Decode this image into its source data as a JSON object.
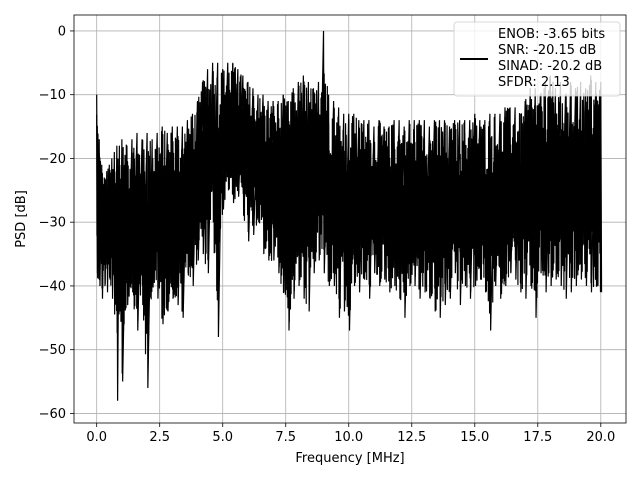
{
  "chart_data": {
    "type": "line",
    "xlabel": "Frequency [MHz]",
    "ylabel": "PSD [dB]",
    "xlim": [
      -0.9,
      21.0
    ],
    "ylim": [
      -61.5,
      2.5
    ],
    "xticks": [
      0.0,
      2.5,
      5.0,
      7.5,
      10.0,
      12.5,
      15.0,
      17.5,
      20.0
    ],
    "xtick_labels": [
      "0.0",
      "2.5",
      "5.0",
      "7.5",
      "10.0",
      "12.5",
      "15.0",
      "17.5",
      "20.0"
    ],
    "yticks": [
      0,
      -10,
      -20,
      -30,
      -40,
      -50,
      -60
    ],
    "ytick_labels": [
      "0",
      "−10",
      "−20",
      "−30",
      "−40",
      "−50",
      "−60"
    ],
    "grid": true,
    "legend_position": "top-right",
    "series_color": "#000000",
    "legend": {
      "entries": [
        "ENOB: -3.65 bits",
        "SNR: -20.15 dB",
        "SINAD: -20.2 dB",
        "SFDR: 2.13"
      ]
    },
    "series": [
      {
        "x": [
          0.0,
          0.1,
          0.2,
          0.3,
          0.4,
          0.5,
          0.6,
          0.7,
          0.8,
          0.9,
          1.0,
          1.2,
          1.4,
          1.6,
          1.8,
          2.0,
          2.2,
          2.4,
          2.6,
          2.8,
          3.0,
          3.2,
          3.4,
          3.6,
          3.8,
          4.0,
          4.2,
          4.4,
          4.6,
          4.8,
          5.0,
          5.2,
          5.4,
          5.6,
          5.8,
          6.0,
          6.2,
          6.4,
          6.6,
          6.8,
          7.0,
          7.2,
          7.4,
          7.6,
          7.8,
          8.0,
          8.2,
          8.4,
          8.6,
          8.8,
          9.0,
          9.2,
          9.4,
          9.6,
          9.8,
          10.0,
          10.2,
          10.4,
          10.6,
          10.8,
          11.0,
          11.2,
          11.4,
          11.6,
          11.8,
          12.0,
          12.2,
          12.4,
          12.6,
          12.8,
          13.0,
          13.2,
          13.4,
          13.6,
          13.8,
          14.0,
          14.2,
          14.4,
          14.6,
          14.8,
          15.0,
          15.2,
          15.4,
          15.6,
          15.8,
          16.0,
          16.2,
          16.4,
          16.6,
          16.8,
          17.0,
          17.2,
          17.4,
          17.6,
          17.8,
          18.0,
          18.2,
          18.4,
          18.6,
          18.8,
          19.0,
          19.2,
          19.4,
          19.6,
          19.8,
          20.0
        ],
        "envelope_max": [
          -10,
          -17,
          -21,
          -23,
          -22,
          -21,
          -20,
          -19,
          -18,
          -18,
          -17,
          -18,
          -17,
          -16,
          -17,
          -16,
          -17,
          -16,
          -15,
          -16,
          -15,
          -15,
          -15,
          -14,
          -13,
          -11,
          -8,
          -6,
          -5,
          -5,
          -6,
          -5,
          -5,
          -6,
          -7,
          -8,
          -9,
          -10,
          -10,
          -11,
          -11,
          -11,
          -10,
          -11,
          -9,
          -8,
          -7,
          -8,
          -9,
          -8,
          0,
          -10,
          -11,
          -12,
          -13,
          -13,
          -13,
          -14,
          -14,
          -14,
          -15,
          -14,
          -15,
          -15,
          -14,
          -14,
          -15,
          -14,
          -14,
          -14,
          -14,
          -15,
          -14,
          -14,
          -14,
          -15,
          -14,
          -14,
          -14,
          -14,
          -13,
          -14,
          -14,
          -13,
          -13,
          -13,
          -12,
          -12,
          -12,
          -13,
          -11,
          -9,
          -9,
          -10,
          -8,
          -7,
          -9,
          -8,
          -10,
          -8,
          -9,
          -8,
          -9,
          -7,
          -8,
          -8
        ],
        "envelope_min": [
          -38,
          -40,
          -42,
          -40,
          -41,
          -39,
          -42,
          -43,
          -58,
          -44,
          -55,
          -43,
          -41,
          -47,
          -43,
          -56,
          -40,
          -42,
          -46,
          -44,
          -42,
          -43,
          -45,
          -38,
          -40,
          -36,
          -35,
          -38,
          -30,
          -48,
          -28,
          -25,
          -27,
          -26,
          -29,
          -33,
          -32,
          -30,
          -35,
          -36,
          -36,
          -38,
          -41,
          -47,
          -42,
          -40,
          -42,
          -44,
          -38,
          -36,
          -38,
          -40,
          -40,
          -45,
          -44,
          -47,
          -40,
          -41,
          -39,
          -42,
          -38,
          -40,
          -39,
          -41,
          -40,
          -42,
          -45,
          -40,
          -40,
          -42,
          -41,
          -42,
          -44,
          -45,
          -43,
          -42,
          -38,
          -43,
          -40,
          -42,
          -40,
          -39,
          -41,
          -47,
          -40,
          -42,
          -40,
          -38,
          -39,
          -41,
          -42,
          -40,
          -45,
          -38,
          -41,
          -40,
          -39,
          -40,
          -42,
          -41,
          -40,
          -39,
          -40,
          -41,
          -40,
          -41
        ]
      }
    ]
  }
}
